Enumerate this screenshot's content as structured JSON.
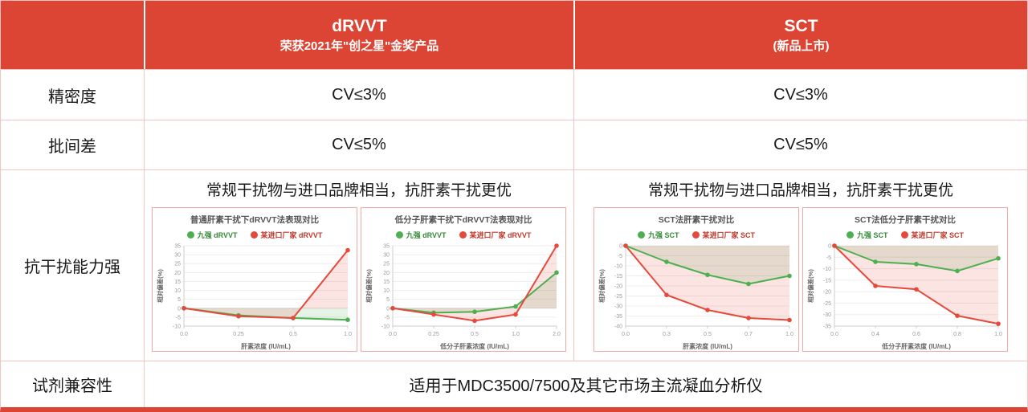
{
  "header": {
    "drvvt": {
      "title": "dRVVT",
      "subtitle": "荣获2021年\"创之星\"金奖产品"
    },
    "sct": {
      "title": "SCT",
      "subtitle": "(新品上市)"
    }
  },
  "rows": {
    "precision": {
      "label": "精密度",
      "drvvt": "CV≤3%",
      "sct": "CV≤3%"
    },
    "batch": {
      "label": "批间差",
      "drvvt": "CV≤5%",
      "sct": "CV≤5%"
    },
    "interference": {
      "label": "抗干扰能力强",
      "drvvt_caption": "常规干扰物与进口品牌相当，抗肝素干扰更优",
      "sct_caption": "常规干扰物与进口品牌相当，抗肝素干扰更优"
    },
    "compatibility": {
      "label": "试剂兼容性",
      "value": "适用于MDC3500/7500及其它市场主流凝血分析仪"
    }
  },
  "colors": {
    "header_red": "#DC4433",
    "table_border": "#F2C4C2",
    "chart_border": "#F0A9A6",
    "series_green": "#4CAF50",
    "series_red": "#E5493B",
    "legend_green_text": "#358A38",
    "legend_red_text": "#C0392B"
  },
  "chart_data": [
    {
      "type": "line",
      "title": "普通肝素干扰下dRVVT法表现对比",
      "xlabel": "肝素浓度 (IU/mL)",
      "ylabel": "相对偏差(%)",
      "ylim": [
        -10,
        35
      ],
      "ytick_step": 5,
      "grid": true,
      "legend_position": "top",
      "categories": [
        "0.0",
        "0.25",
        "0.5",
        "1.0"
      ],
      "series": [
        {
          "name": "九强 dRVVT",
          "color": "#4CAF50",
          "text_color": "#358A38",
          "values": [
            0,
            -4,
            -5.5,
            -6.5
          ]
        },
        {
          "name": "某进口厂家 dRVVT",
          "color": "#E5493B",
          "text_color": "#C0392B",
          "values": [
            0,
            -4.5,
            -5.5,
            32.5
          ]
        }
      ]
    },
    {
      "type": "line",
      "title": "低分子肝素干扰下dRVVT法表现对比",
      "xlabel": "低分子肝素浓度 (IU/mL)",
      "ylabel": "相对偏差(%)",
      "ylim": [
        -10,
        35
      ],
      "ytick_step": 5,
      "grid": true,
      "legend_position": "top",
      "categories": [
        "0.0",
        "0.25",
        "0.5",
        "1.0",
        "2.0"
      ],
      "series": [
        {
          "name": "九强 dRVVT",
          "color": "#4CAF50",
          "text_color": "#358A38",
          "values": [
            0,
            -2.5,
            -2,
            1,
            20
          ]
        },
        {
          "name": "某进口厂家 dRVVT",
          "color": "#E5493B",
          "text_color": "#C0392B",
          "values": [
            0,
            -3.5,
            -7,
            -3.5,
            35
          ]
        }
      ]
    },
    {
      "type": "line",
      "title": "SCT法肝素干扰对比",
      "xlabel": "肝素浓度 (IU/mL)",
      "ylabel": "相对偏差(%)",
      "ylim": [
        -40,
        0
      ],
      "ytick_step": 5,
      "grid": true,
      "legend_position": "top",
      "categories": [
        "0.0",
        "0.3",
        "0.5",
        "0.7",
        "1.0"
      ],
      "series": [
        {
          "name": "九强 SCT",
          "color": "#4CAF50",
          "text_color": "#358A38",
          "values": [
            0,
            -8,
            -14.5,
            -19,
            -15
          ]
        },
        {
          "name": "某进口厂家 SCT",
          "color": "#E5493B",
          "text_color": "#C0392B",
          "values": [
            0,
            -24.5,
            -32,
            -36,
            -37
          ]
        }
      ]
    },
    {
      "type": "line",
      "title": "SCT法低分子肝素干扰对比",
      "xlabel": "低分子肝素浓度 (IU/mL)",
      "ylabel": "相对偏差(%)",
      "ylim": [
        -35,
        0
      ],
      "ytick_step": 5,
      "grid": true,
      "legend_position": "top",
      "categories": [
        "0.0",
        "0.4",
        "0.6",
        "0.8",
        "1.0"
      ],
      "series": [
        {
          "name": "九强 SCT",
          "color": "#4CAF50",
          "text_color": "#358A38",
          "values": [
            0,
            -7,
            -8,
            -11,
            -5.5
          ]
        },
        {
          "name": "某进口厂家 SCT",
          "color": "#E5493B",
          "text_color": "#C0392B",
          "values": [
            0,
            -17.5,
            -19,
            -30.5,
            -34
          ]
        }
      ]
    }
  ]
}
